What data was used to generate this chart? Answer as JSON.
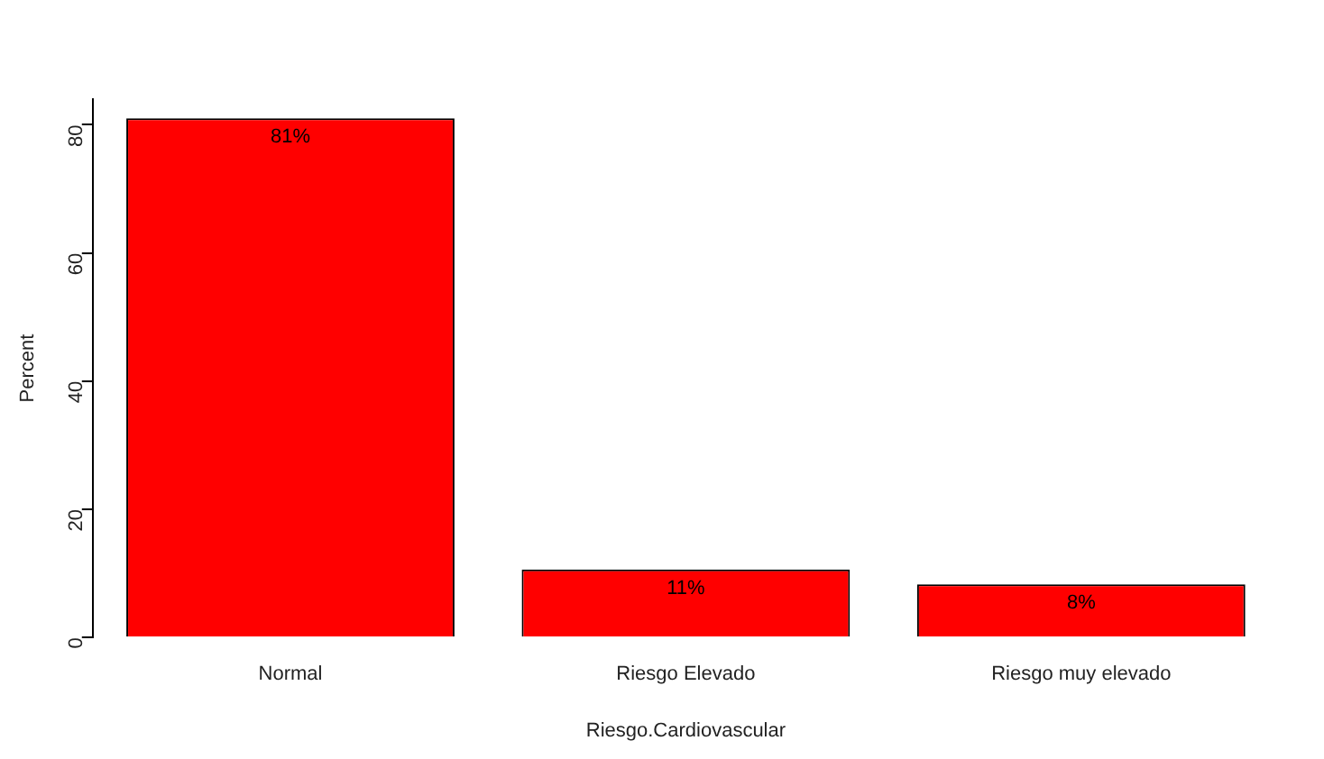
{
  "chart_data": {
    "type": "bar",
    "xlabel": "Riesgo.Cardiovascular",
    "ylabel": "Percent",
    "categories": [
      "Normal",
      "Riesgo Elevado",
      "Riesgo muy elevado"
    ],
    "values": [
      81,
      10.6,
      8.3
    ],
    "value_labels": [
      "81%",
      "11%",
      "8%"
    ],
    "color": "#ff0000",
    "ylim": [
      0,
      84
    ],
    "yticks": [
      0,
      20,
      40,
      60,
      80
    ],
    "grid": false,
    "legend": false
  }
}
